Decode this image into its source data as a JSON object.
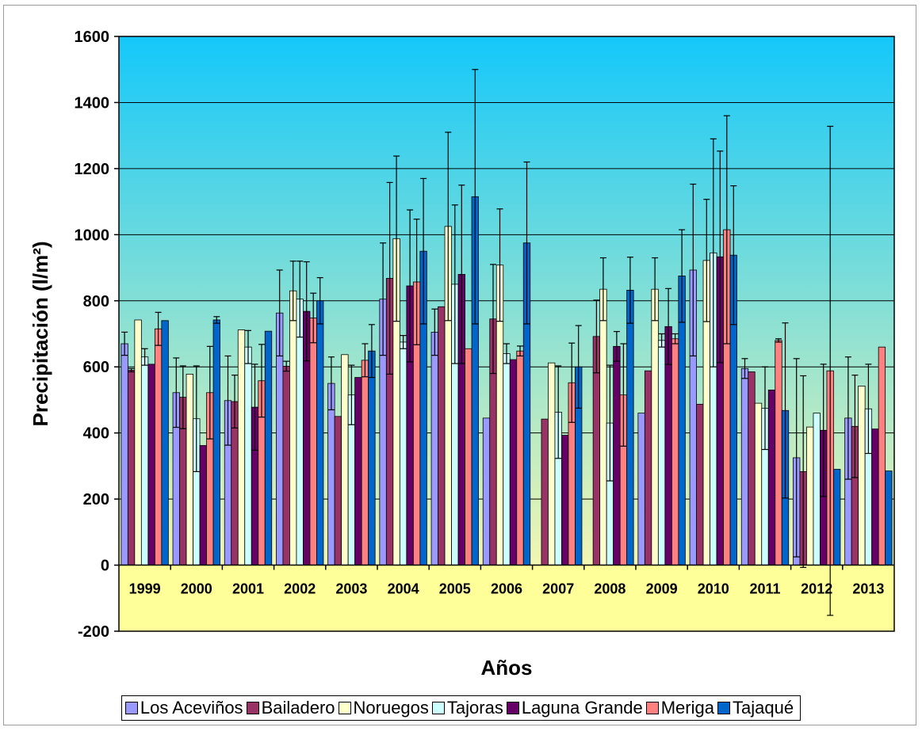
{
  "chart_data": {
    "type": "bar",
    "title": "",
    "xlabel": "Años",
    "ylabel": "Precipitación (l/m²)",
    "ylim": [
      -200,
      1600
    ],
    "yticks": [
      "-200",
      "0",
      "200",
      "400",
      "600",
      "800",
      "1000",
      "1200",
      "1400",
      "1600"
    ],
    "grid": true,
    "legend_position": "bottom",
    "categories": [
      "1999",
      "2000",
      "2001",
      "2002",
      "2003",
      "2004",
      "2005",
      "2006",
      "2007",
      "2008",
      "2009",
      "2010",
      "2011",
      "2012",
      "2013"
    ],
    "series": [
      {
        "name": "Los Aceviños",
        "color": "#9999FF",
        "values": [
          670,
          522,
          498,
          763,
          550,
          805,
          705,
          445,
          0,
          0,
          460,
          893,
          595,
          325,
          445
        ],
        "errors": [
          35,
          105,
          135,
          130,
          80,
          170,
          70,
          0,
          0,
          0,
          0,
          260,
          30,
          300,
          185
        ]
      },
      {
        "name": "Bailadero",
        "color": "#993366",
        "values": [
          590,
          508,
          495,
          602,
          450,
          868,
          782,
          745,
          442,
          692,
          588,
          487,
          585,
          283,
          420
        ],
        "errors": [
          5,
          95,
          80,
          15,
          0,
          290,
          0,
          165,
          0,
          110,
          0,
          0,
          0,
          290,
          155
        ]
      },
      {
        "name": "Noruegos",
        "color": "#FFFFCC",
        "values": [
          742,
          578,
          712,
          830,
          637,
          988,
          1025,
          908,
          612,
          835,
          835,
          922,
          490,
          418,
          542
        ],
        "errors": [
          0,
          0,
          0,
          90,
          0,
          250,
          285,
          170,
          0,
          95,
          95,
          185,
          0,
          0,
          0
        ]
      },
      {
        "name": "Tajoras",
        "color": "#CCFFFF",
        "values": [
          630,
          443,
          660,
          805,
          515,
          675,
          850,
          640,
          463,
          430,
          680,
          945,
          475,
          460,
          473
        ],
        "errors": [
          25,
          160,
          50,
          115,
          90,
          20,
          240,
          30,
          140,
          175,
          20,
          345,
          125,
          0,
          135
        ]
      },
      {
        "name": "Laguna Grande",
        "color": "#660066",
        "values": [
          608,
          362,
          478,
          768,
          568,
          845,
          880,
          622,
          393,
          662,
          722,
          933,
          530,
          408,
          412
        ],
        "errors": [
          0,
          0,
          130,
          150,
          0,
          230,
          270,
          0,
          0,
          45,
          115,
          320,
          0,
          200,
          0
        ]
      },
      {
        "name": "Meriga",
        "color": "#FF8080",
        "values": [
          715,
          522,
          558,
          748,
          620,
          857,
          655,
          648,
          552,
          515,
          685,
          1015,
          680,
          588,
          660
        ],
        "errors": [
          50,
          140,
          110,
          75,
          50,
          190,
          0,
          15,
          120,
          155,
          15,
          345,
          5,
          740,
          0
        ]
      },
      {
        "name": "Tajaqué",
        "color": "#0066CC",
        "values": [
          740,
          742,
          708,
          800,
          648,
          950,
          1115,
          975,
          600,
          832,
          875,
          938,
          468,
          290,
          285
        ],
        "errors": [
          0,
          10,
          0,
          70,
          80,
          220,
          385,
          245,
          125,
          100,
          140,
          210,
          265,
          0,
          0
        ]
      }
    ]
  }
}
